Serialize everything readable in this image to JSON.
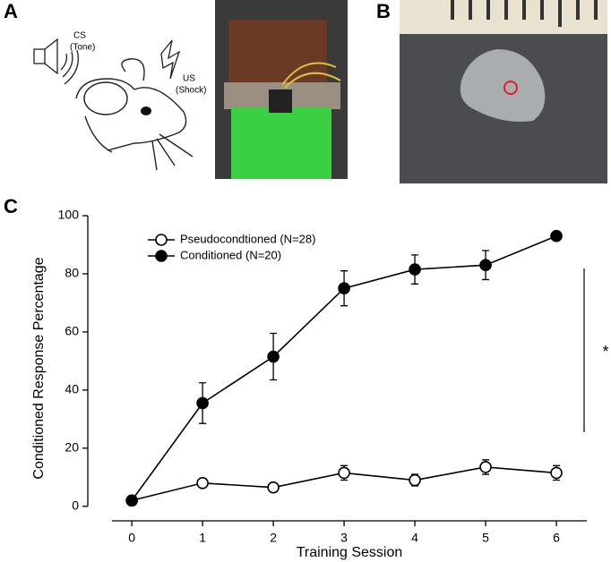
{
  "panels": {
    "a": {
      "label": "A",
      "cs": "CS",
      "cs_sub": "(Tone)",
      "us": "US",
      "us_sub": "(Shock)"
    },
    "b": {
      "label": "B"
    },
    "c": {
      "label": "C"
    }
  },
  "chart_data": {
    "type": "line",
    "xlabel": "Training Session",
    "ylabel": "Conditioned Response Percentage",
    "x": [
      0,
      1,
      2,
      3,
      4,
      5,
      6
    ],
    "series": [
      {
        "name": "Pseudocondtioned (N=28)",
        "color": "#000000",
        "marker": "open",
        "values": [
          2,
          8,
          6.5,
          11.5,
          9,
          13.5,
          11.5
        ],
        "errors": [
          0.5,
          1.5,
          1.5,
          2.5,
          2,
          2.5,
          2.5
        ]
      },
      {
        "name": "Conditioned (N=20)",
        "color": "#000000",
        "marker": "filled",
        "values": [
          2,
          35.5,
          51.5,
          75,
          81.5,
          83,
          93
        ],
        "errors": [
          0.5,
          7,
          8,
          6,
          5,
          5,
          1
        ]
      }
    ],
    "xlim": [
      -0.28,
      6.43
    ],
    "ylim": [
      -5,
      100
    ],
    "xticks": [
      0,
      1,
      2,
      3,
      4,
      5,
      6
    ],
    "yticks": [
      0,
      20,
      40,
      60,
      80,
      100
    ],
    "annotation": "*",
    "legend": "upper left"
  }
}
